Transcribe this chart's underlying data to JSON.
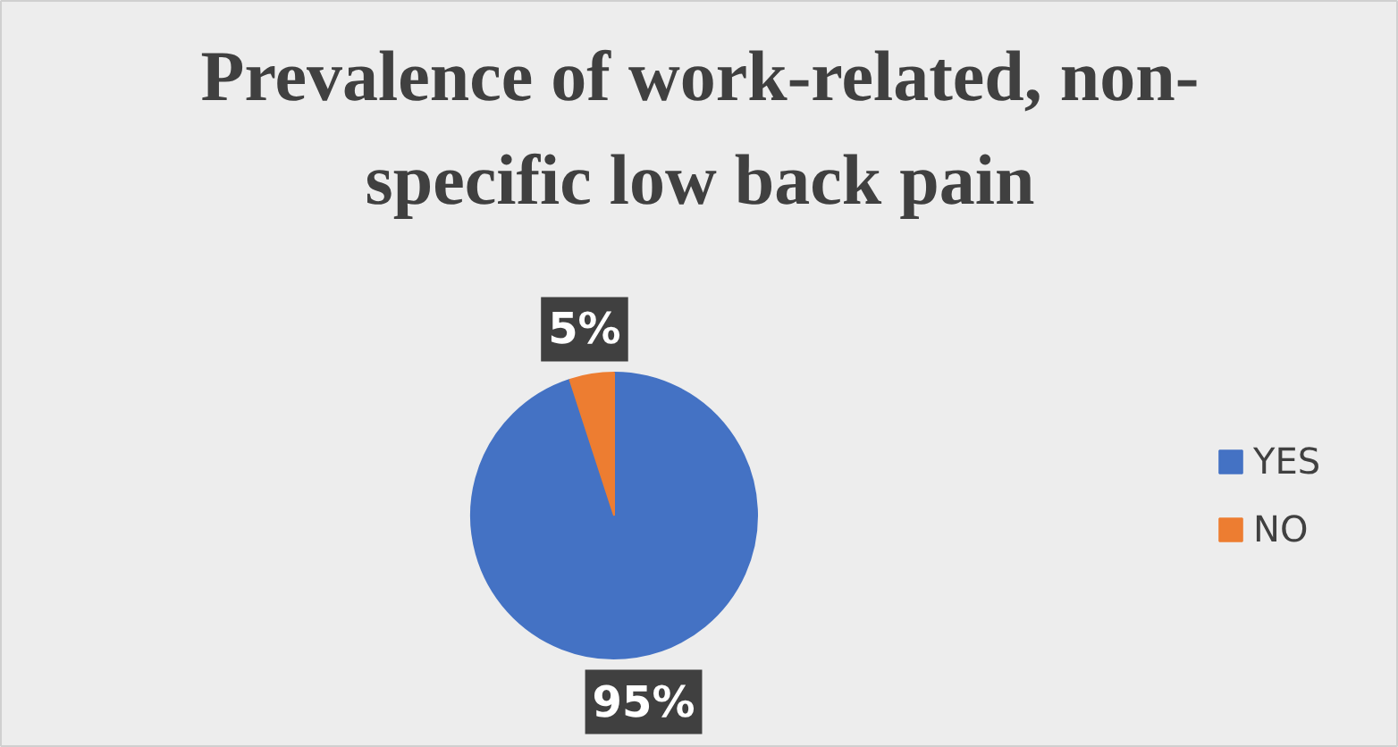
{
  "chart_data": {
    "type": "pie",
    "title": "Prevalence of work-related, non-specific low back pain",
    "categories": [
      "YES",
      "NO"
    ],
    "values": [
      95,
      5
    ],
    "colors": [
      "#4472c4",
      "#ed7d31"
    ],
    "value_labels": [
      "95%",
      "5%"
    ],
    "legend": "right"
  }
}
